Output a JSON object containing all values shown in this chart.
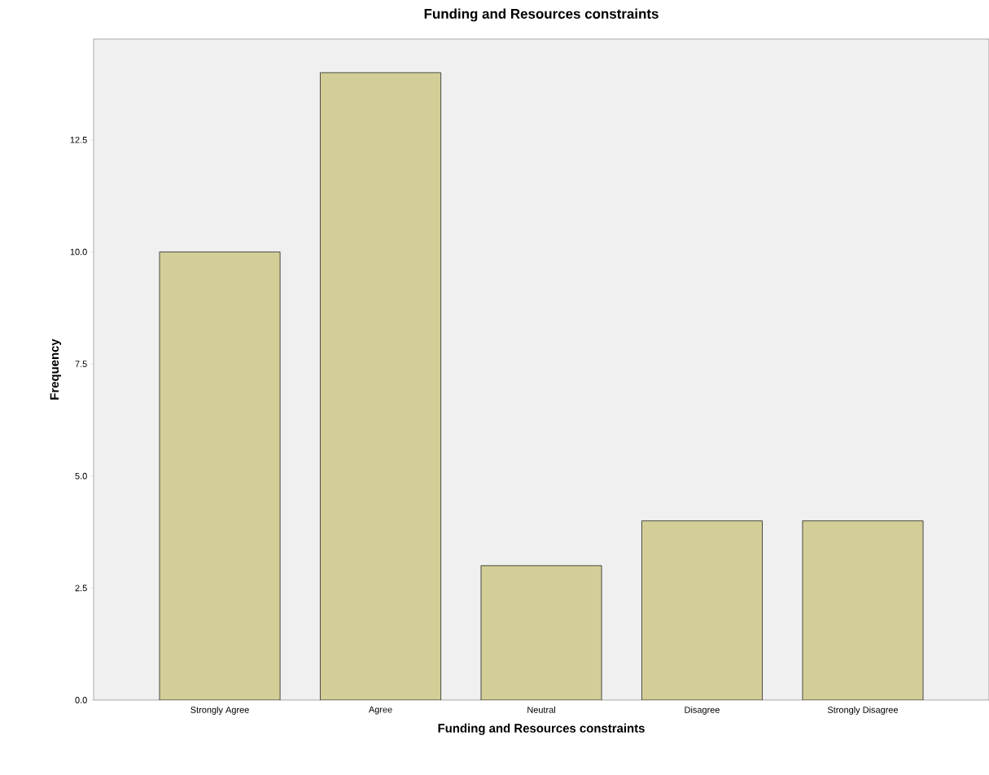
{
  "chart_data": {
    "type": "bar",
    "title": "Funding and Resources constraints",
    "xlabel": "Funding and Resources constraints",
    "ylabel": "Frequency",
    "categories": [
      "Strongly Agree",
      "Agree",
      "Neutral",
      "Disagree",
      "Strongly Disagree"
    ],
    "values": [
      10,
      14,
      3,
      4,
      4
    ],
    "color": "#d3ce97",
    "ylim": [
      0,
      14.75
    ],
    "yticks": [
      {
        "value": 0,
        "label": "0.0"
      },
      {
        "value": 2.5,
        "label": "2.5"
      },
      {
        "value": 5,
        "label": "5.0"
      },
      {
        "value": 7.5,
        "label": "7.5"
      },
      {
        "value": 10,
        "label": "10.0"
      },
      {
        "value": 12.5,
        "label": "12.5"
      }
    ],
    "grid": false
  }
}
